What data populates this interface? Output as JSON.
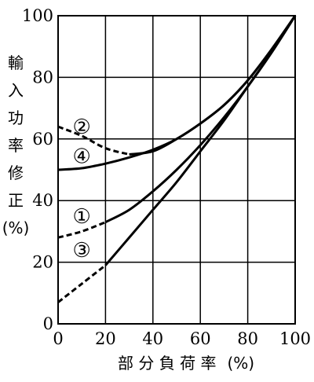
{
  "chart_data": {
    "type": "line",
    "xlabel_chars": [
      "部",
      "分",
      "負",
      "荷",
      "率"
    ],
    "xlabel_unit": "(%)",
    "ylabel_chars": [
      "輸",
      "入",
      "功",
      "率",
      "修",
      "正"
    ],
    "ylabel_unit": "(%)",
    "xlim": [
      0,
      100
    ],
    "ylim": [
      0,
      100
    ],
    "xticks": [
      0,
      20,
      40,
      60,
      80,
      100
    ],
    "yticks": [
      0,
      20,
      40,
      60,
      80,
      100
    ],
    "grid": true,
    "series": [
      {
        "label": "①",
        "dashed_segment": [
          [
            0,
            28
          ],
          [
            10,
            30
          ],
          [
            20,
            33
          ]
        ],
        "solid_segment": [
          [
            20,
            33
          ],
          [
            30,
            37
          ],
          [
            40,
            43
          ],
          [
            50,
            50
          ],
          [
            60,
            58
          ],
          [
            70,
            67
          ],
          [
            80,
            77
          ],
          [
            90,
            88
          ],
          [
            100,
            100
          ]
        ]
      },
      {
        "label": "②",
        "dashed_segment": [
          [
            0,
            64
          ],
          [
            10,
            61
          ],
          [
            20,
            57
          ],
          [
            30,
            55
          ]
        ],
        "solid_segment": [
          [
            30,
            55
          ],
          [
            40,
            56
          ],
          [
            50,
            60
          ],
          [
            60,
            65
          ],
          [
            70,
            71
          ],
          [
            80,
            79
          ],
          [
            90,
            89
          ],
          [
            100,
            100
          ]
        ]
      },
      {
        "label": "③",
        "dashed_segment": [
          [
            0,
            7
          ],
          [
            10,
            13
          ],
          [
            20,
            19
          ]
        ],
        "solid_segment": [
          [
            20,
            19
          ],
          [
            30,
            28
          ],
          [
            40,
            37
          ],
          [
            50,
            46
          ],
          [
            60,
            56
          ],
          [
            70,
            66
          ],
          [
            80,
            77
          ],
          [
            90,
            88
          ],
          [
            100,
            100
          ]
        ]
      },
      {
        "label": "④",
        "dashed_segment": [],
        "solid_segment": [
          [
            0,
            50
          ],
          [
            10,
            50.5
          ],
          [
            20,
            52
          ],
          [
            30,
            54
          ],
          [
            40,
            56.5
          ],
          [
            50,
            60
          ],
          [
            60,
            65
          ],
          [
            70,
            71
          ],
          [
            80,
            79
          ],
          [
            90,
            89
          ],
          [
            100,
            100
          ]
        ]
      }
    ]
  }
}
